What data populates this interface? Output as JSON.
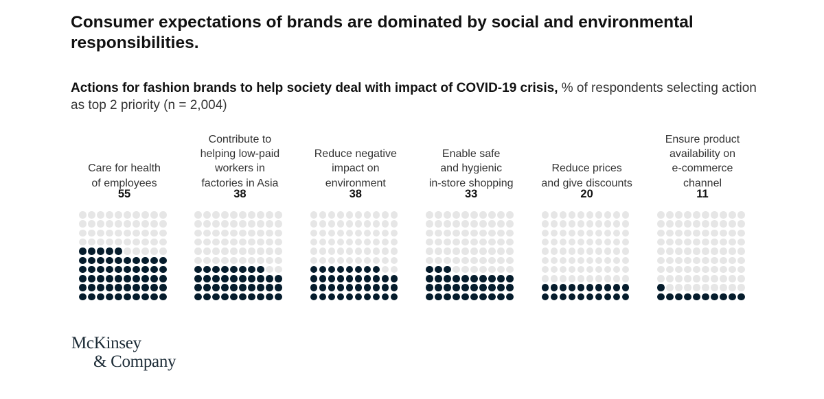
{
  "header": {
    "title": "Consumer expectations of brands are dominated by social and environmental responsibilities.",
    "subtitle_bold": "Actions for fashion brands to help society deal with impact of COVID-19 crisis,",
    "subtitle_rest": " % of respondents selecting action as top 2 priority (n = 2,004)"
  },
  "chart_data": {
    "type": "waffle",
    "title": "Actions for fashion brands to help society deal with impact of COVID-19 crisis",
    "unit": "% of respondents selecting action as top 2 priority",
    "n": "2,004",
    "grid": {
      "rows": 10,
      "cols": 10,
      "fill_from": "bottom-left"
    },
    "colors": {
      "filled": "#051c2c",
      "empty": "#e6e6e6"
    },
    "categories": [
      "Care for health\nof employees",
      "Contribute to\nhelping low-paid\nworkers in\nfactories in Asia",
      "Reduce negative\nimpact on\nenvironment",
      "Enable safe\nand hygienic\nin-store shopping",
      "Reduce prices\nand give discounts",
      "Ensure product\navailability on\ne-commerce\nchannel"
    ],
    "values": [
      55,
      38,
      38,
      33,
      20,
      11
    ]
  },
  "footer": {
    "logo_line1": "McKinsey",
    "logo_line2": "& Company"
  }
}
